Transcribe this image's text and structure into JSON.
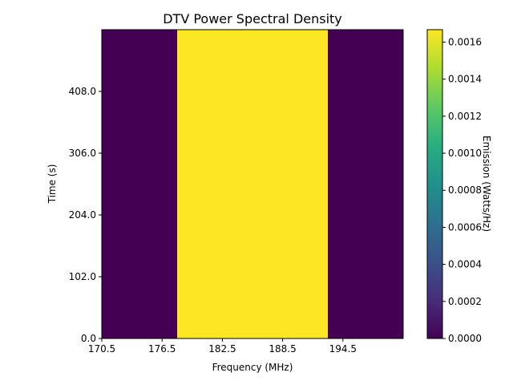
{
  "chart_data": {
    "type": "heatmap",
    "title": "DTV Power Spectral Density",
    "xlabel": "Frequency (MHz)",
    "ylabel": "Time (s)",
    "colorbar_label": "Emission (Watts/Hz)",
    "colormap": "viridis",
    "xlim": [
      170.5,
      200.5
    ],
    "ylim": [
      0,
      510
    ],
    "x_ticks": [
      "170.5",
      "176.5",
      "182.5",
      "188.5",
      "194.5"
    ],
    "y_ticks": [
      "0.0",
      "102.0",
      "204.0",
      "306.0",
      "408.0"
    ],
    "colorbar_ticks": [
      "0.0000",
      "0.0002",
      "0.0004",
      "0.0006",
      "0.0008",
      "0.0010",
      "0.0012",
      "0.0014",
      "0.0016"
    ],
    "clim": [
      0,
      0.001667
    ],
    "bands": [
      {
        "x_start": 170.5,
        "x_end": 178.0,
        "value": 0
      },
      {
        "x_start": 178.0,
        "x_end": 193.0,
        "value": 0.001667
      },
      {
        "x_start": 193.0,
        "x_end": 200.5,
        "value": 0
      }
    ]
  }
}
